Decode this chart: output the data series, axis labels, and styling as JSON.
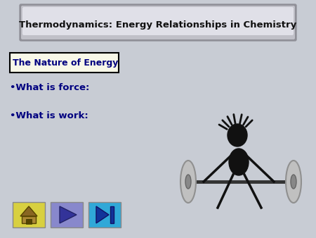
{
  "bg_color": "#c8ccd4",
  "title": "Thermodynamics: Energy Relationships in Chemistry",
  "subtitle": "The Nature of Energy",
  "bullet1": "•What is force:",
  "bullet2": "•What is work:",
  "text_color": "#000080",
  "title_box_outer": "#909098",
  "title_box_mid": "#c0c0c8",
  "title_box_inner": "#e0e0e8",
  "subtitle_box_bg": "#f8f8e8",
  "subtitle_box_edge": "#000000",
  "stick_color": "#111111",
  "weight_color": "#c0c0c0",
  "weight_edge": "#909090",
  "btn_home_color": "#d8d040",
  "btn_play_color": "#8888cc",
  "btn_skip_color": "#30a8d8"
}
